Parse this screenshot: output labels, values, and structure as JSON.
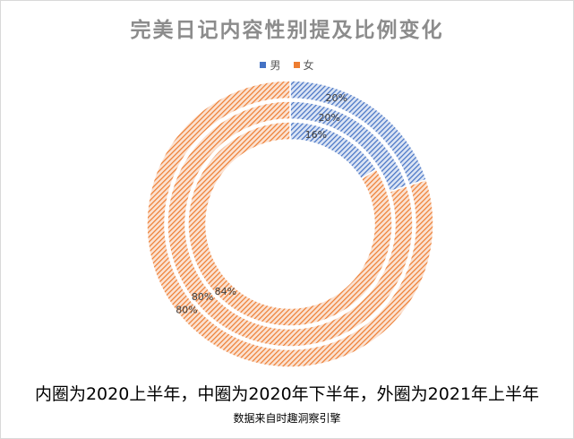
{
  "chart_data": {
    "type": "doughnut",
    "title": "完美日记内容性别提及比例变化",
    "legend_position": "top",
    "series_names": [
      "男",
      "女"
    ],
    "colors": [
      "#4472c4",
      "#ed7d31"
    ],
    "rings": [
      {
        "order": "inner",
        "values": [
          16,
          84
        ],
        "labels": [
          "16%",
          "84%"
        ]
      },
      {
        "order": "middle",
        "values": [
          20,
          80
        ],
        "labels": [
          "20%",
          "80%"
        ]
      },
      {
        "order": "outer",
        "values": [
          20,
          80
        ],
        "labels": [
          "20%",
          "80%"
        ]
      }
    ],
    "caption": "内圈为2020上半年，中圈为2020年下半年，外圈为2021年上半年",
    "source": "数据来自时趣洞察引擎"
  }
}
